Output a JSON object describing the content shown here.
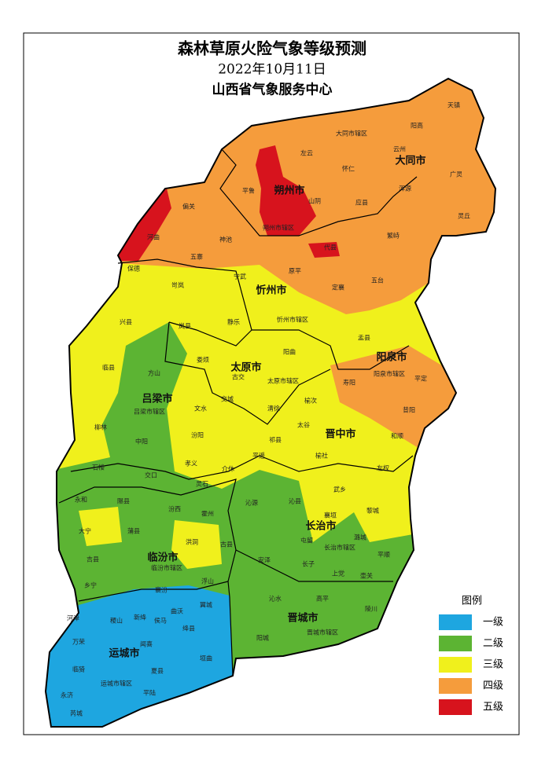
{
  "title": "森林草原火险气象等级预测",
  "date": "2022年10月11日",
  "issuer": "山西省气象服务中心",
  "legend": {
    "title": "图例",
    "items": [
      {
        "label": "一级",
        "color": "#1ea6e0"
      },
      {
        "label": "二级",
        "color": "#5cb433"
      },
      {
        "label": "三级",
        "color": "#f0f01c"
      },
      {
        "label": "四级",
        "color": "#f59c3c"
      },
      {
        "label": "五级",
        "color": "#d7131d"
      }
    ]
  },
  "cities": [
    "大同市",
    "朔州市",
    "忻州市",
    "阳泉市",
    "太原市",
    "吕梁市",
    "晋中市",
    "长治市",
    "临汾市",
    "晋城市",
    "运城市"
  ],
  "counties": [
    "天镇",
    "阳高",
    "大同市辖区",
    "左云",
    "云州",
    "广灵",
    "怀仁",
    "浑源",
    "平鲁",
    "山阴",
    "应县",
    "灵丘",
    "偏关",
    "朔州市辖区",
    "繁峙",
    "河曲",
    "神池",
    "代县",
    "五寨",
    "保德",
    "原平",
    "五台",
    "宁武",
    "岢岚",
    "定襄",
    "兴县",
    "静乐",
    "忻州市辖区",
    "岚县",
    "盂县",
    "临县",
    "娄烦",
    "阳曲",
    "古交",
    "阳泉市辖区",
    "寿阳",
    "平定",
    "方山",
    "太原市辖区",
    "交城",
    "吕梁市辖区",
    "文水",
    "清徐",
    "榆次",
    "昔阳",
    "柳林",
    "中阳",
    "汾阳",
    "太谷",
    "和顺",
    "祁县",
    "石楼",
    "孝义",
    "平遥",
    "榆社",
    "介休",
    "左权",
    "交口",
    "灵石",
    "武乡",
    "永和",
    "隰县",
    "沁源",
    "沁县",
    "汾西",
    "襄垣",
    "黎城",
    "大宁",
    "蒲县",
    "霍州",
    "洪洞",
    "古县",
    "屯留",
    "潞城",
    "安泽",
    "吉县",
    "临汾市辖区",
    "长治市辖区",
    "平顺",
    "长子",
    "上党",
    "壶关",
    "乡宁",
    "浮山",
    "襄汾",
    "沁水",
    "高平",
    "陵川",
    "曲沃",
    "翼城",
    "河津",
    "稷山",
    "新绛",
    "侯马",
    "绛县",
    "万荣",
    "阳城",
    "晋城市辖区",
    "闻喜",
    "垣曲",
    "临猗",
    "夏县",
    "运城市辖区",
    "平陆",
    "永济",
    "芮城"
  ]
}
